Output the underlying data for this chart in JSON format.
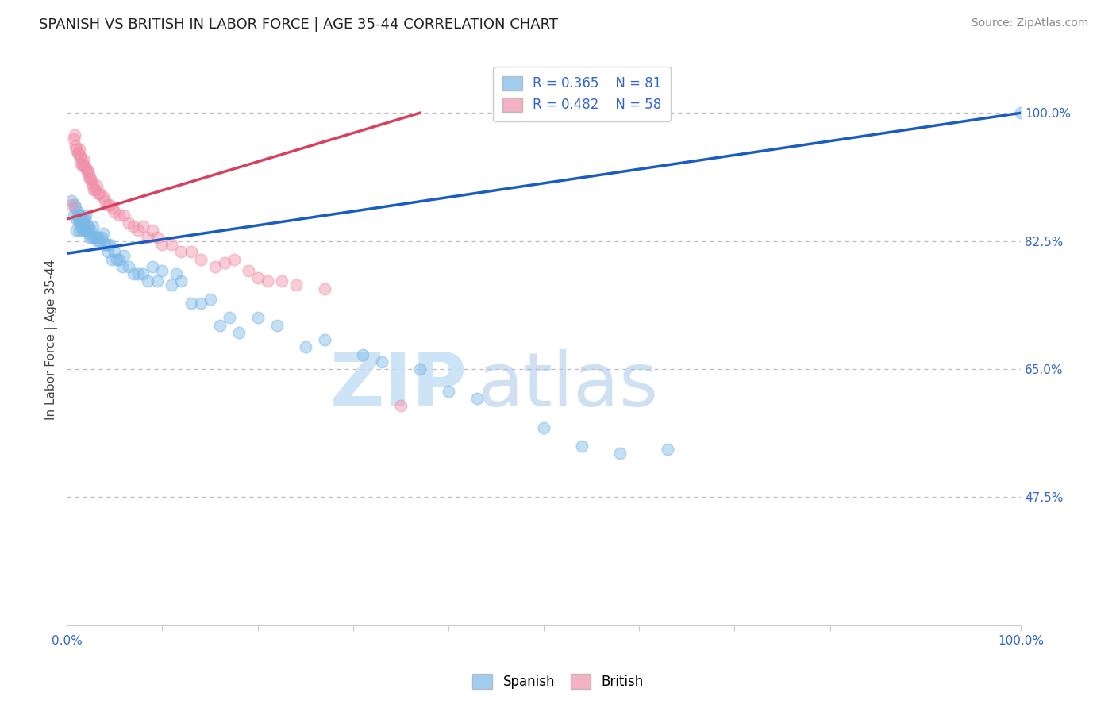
{
  "title": "SPANISH VS BRITISH IN LABOR FORCE | AGE 35-44 CORRELATION CHART",
  "source_text": "Source: ZipAtlas.com",
  "ylabel": "In Labor Force | Age 35-44",
  "y_tick_labels_right": [
    "47.5%",
    "65.0%",
    "82.5%",
    "100.0%"
  ],
  "y_tick_values_right": [
    0.475,
    0.65,
    0.825,
    1.0
  ],
  "xlim": [
    0.0,
    1.0
  ],
  "ylim": [
    0.3,
    1.08
  ],
  "legend_R_blue": "R = 0.365",
  "legend_N_blue": "N = 81",
  "legend_R_pink": "R = 0.482",
  "legend_N_pink": "N = 58",
  "legend_label_blue": "Spanish",
  "legend_label_pink": "British",
  "blue_color": "#7ab8e8",
  "pink_color": "#f090a8",
  "blue_line_color": "#1a5cbf",
  "pink_line_color": "#d84060",
  "watermark_zip": "ZIP",
  "watermark_atlas": "atlas",
  "title_fontsize": 13,
  "axis_label_fontsize": 11,
  "tick_fontsize": 11,
  "source_fontsize": 10,
  "blue_scatter_x": [
    0.005,
    0.007,
    0.008,
    0.009,
    0.01,
    0.01,
    0.011,
    0.012,
    0.012,
    0.013,
    0.013,
    0.014,
    0.014,
    0.015,
    0.015,
    0.016,
    0.016,
    0.017,
    0.018,
    0.018,
    0.019,
    0.019,
    0.02,
    0.02,
    0.021,
    0.022,
    0.022,
    0.023,
    0.024,
    0.025,
    0.026,
    0.027,
    0.028,
    0.03,
    0.031,
    0.032,
    0.033,
    0.035,
    0.036,
    0.038,
    0.04,
    0.042,
    0.043,
    0.045,
    0.047,
    0.05,
    0.052,
    0.055,
    0.058,
    0.06,
    0.065,
    0.07,
    0.075,
    0.08,
    0.085,
    0.09,
    0.095,
    0.1,
    0.11,
    0.115,
    0.12,
    0.13,
    0.14,
    0.15,
    0.16,
    0.17,
    0.18,
    0.2,
    0.22,
    0.25,
    0.27,
    0.31,
    0.33,
    0.37,
    0.4,
    0.43,
    0.5,
    0.54,
    0.58,
    0.63,
    1.0
  ],
  "blue_scatter_y": [
    0.88,
    0.86,
    0.875,
    0.87,
    0.84,
    0.855,
    0.865,
    0.86,
    0.855,
    0.84,
    0.85,
    0.855,
    0.86,
    0.845,
    0.855,
    0.85,
    0.84,
    0.855,
    0.845,
    0.85,
    0.84,
    0.855,
    0.84,
    0.86,
    0.845,
    0.84,
    0.845,
    0.835,
    0.83,
    0.84,
    0.83,
    0.845,
    0.83,
    0.83,
    0.83,
    0.825,
    0.83,
    0.825,
    0.83,
    0.835,
    0.82,
    0.82,
    0.81,
    0.82,
    0.8,
    0.81,
    0.8,
    0.8,
    0.79,
    0.805,
    0.79,
    0.78,
    0.78,
    0.78,
    0.77,
    0.79,
    0.77,
    0.785,
    0.765,
    0.78,
    0.77,
    0.74,
    0.74,
    0.745,
    0.71,
    0.72,
    0.7,
    0.72,
    0.71,
    0.68,
    0.69,
    0.67,
    0.66,
    0.65,
    0.62,
    0.61,
    0.57,
    0.545,
    0.535,
    0.54,
    1.0
  ],
  "pink_scatter_x": [
    0.005,
    0.007,
    0.008,
    0.009,
    0.01,
    0.011,
    0.012,
    0.013,
    0.014,
    0.015,
    0.015,
    0.016,
    0.017,
    0.018,
    0.019,
    0.02,
    0.021,
    0.022,
    0.023,
    0.024,
    0.025,
    0.026,
    0.027,
    0.028,
    0.03,
    0.031,
    0.033,
    0.035,
    0.038,
    0.04,
    0.042,
    0.045,
    0.048,
    0.05,
    0.055,
    0.06,
    0.065,
    0.07,
    0.075,
    0.08,
    0.085,
    0.09,
    0.095,
    0.1,
    0.11,
    0.12,
    0.13,
    0.14,
    0.155,
    0.165,
    0.175,
    0.19,
    0.2,
    0.21,
    0.225,
    0.24,
    0.27,
    0.35
  ],
  "pink_scatter_y": [
    0.875,
    0.965,
    0.97,
    0.955,
    0.95,
    0.945,
    0.945,
    0.95,
    0.94,
    0.94,
    0.93,
    0.93,
    0.93,
    0.935,
    0.925,
    0.925,
    0.92,
    0.92,
    0.915,
    0.91,
    0.91,
    0.905,
    0.9,
    0.895,
    0.895,
    0.9,
    0.89,
    0.89,
    0.885,
    0.88,
    0.875,
    0.875,
    0.87,
    0.865,
    0.86,
    0.86,
    0.85,
    0.845,
    0.84,
    0.845,
    0.83,
    0.84,
    0.83,
    0.82,
    0.82,
    0.81,
    0.81,
    0.8,
    0.79,
    0.795,
    0.8,
    0.785,
    0.775,
    0.77,
    0.77,
    0.765,
    0.76,
    0.6
  ],
  "blue_line_x": [
    0.0,
    1.0
  ],
  "blue_line_y": [
    0.808,
    1.0
  ],
  "pink_line_x": [
    0.0,
    0.37
  ],
  "pink_line_y": [
    0.855,
    1.0
  ],
  "dotted_line_color": "#bbbbbb",
  "dotted_line_y": [
    0.475,
    0.65,
    0.825,
    1.0
  ]
}
